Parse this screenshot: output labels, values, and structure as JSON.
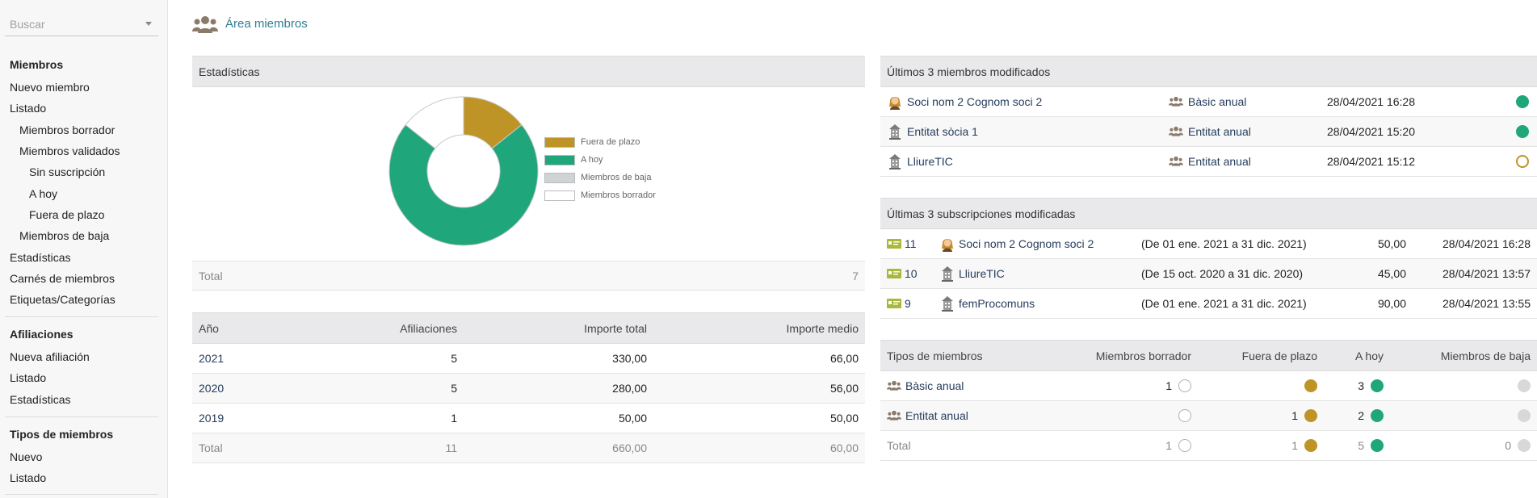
{
  "search": {
    "placeholder": "Buscar"
  },
  "sidebar": {
    "sections": [
      {
        "head": "Miembros",
        "items": [
          "Nuevo miembro",
          "Listado",
          "Miembros borrador",
          "Miembros validados",
          "Sin suscripción",
          "A hoy",
          "Fuera de plazo",
          "Miembros de baja",
          "Estadísticas",
          "Carnés de miembros",
          "Etiquetas/Categorías"
        ]
      },
      {
        "head": "Afiliaciones",
        "items": [
          "Nueva afiliación",
          "Listado",
          "Estadísticas"
        ]
      },
      {
        "head": "Tipos de miembros",
        "items": [
          "Nuevo",
          "Listado"
        ]
      }
    ]
  },
  "page": {
    "title": "Área miembros"
  },
  "stats": {
    "heading": "Estadísticas",
    "total_label": "Total",
    "total_value": "7",
    "legend": [
      "Fuera de plazo",
      "A hoy",
      "Miembros de baja",
      "Miembros borrador"
    ]
  },
  "chart_data": {
    "type": "pie",
    "title": "",
    "categories": [
      "Fuera de plazo",
      "A hoy",
      "Miembros de baja",
      "Miembros borrador"
    ],
    "values": [
      1,
      5,
      0,
      1
    ],
    "colors": [
      "#bf9426",
      "#1fa67a",
      "#d0d3d4",
      "#ffffff"
    ]
  },
  "yearly": {
    "headers": [
      "Año",
      "Afiliaciones",
      "Importe total",
      "Importe medio"
    ],
    "rows": [
      [
        "2021",
        "5",
        "330,00",
        "66,00"
      ],
      [
        "2020",
        "5",
        "280,00",
        "56,00"
      ],
      [
        "2019",
        "1",
        "50,00",
        "50,00"
      ]
    ],
    "total": [
      "Total",
      "11",
      "660,00",
      "60,00"
    ]
  },
  "last_members": {
    "heading": "Últimos 3 miembros modificados",
    "rows": [
      {
        "name": "Soci nom 2 Cognom soci 2",
        "type": "Bàsic anual",
        "date": "28/04/2021 16:28",
        "status": "green",
        "avatar": "woman-avatar-icon"
      },
      {
        "name": "Entitat sòcia 1",
        "type": "Entitat anual",
        "date": "28/04/2021 15:20",
        "status": "green",
        "avatar": "building-icon"
      },
      {
        "name": "LliureTIC",
        "type": "Entitat anual",
        "date": "28/04/2021 15:12",
        "status": "empty-gold",
        "avatar": "building-icon"
      }
    ]
  },
  "last_subs": {
    "heading": "Últimas 3 subscripciones modificadas",
    "rows": [
      {
        "ref": "11",
        "name": "Soci nom 2 Cognom soci 2",
        "period": "(De 01 ene. 2021 a 31 dic. 2021)",
        "amount": "50,00",
        "date": "28/04/2021 16:28",
        "avatar": "woman-avatar-icon"
      },
      {
        "ref": "10",
        "name": "LliureTIC",
        "period": "(De 15 oct. 2020 a 31 dic. 2020)",
        "amount": "45,00",
        "date": "28/04/2021 13:57",
        "avatar": "building-icon"
      },
      {
        "ref": "9",
        "name": "femProcomuns",
        "period": "(De 01 ene. 2021 a 31 dic. 2021)",
        "amount": "90,00",
        "date": "28/04/2021 13:55",
        "avatar": "building-icon"
      }
    ]
  },
  "member_types": {
    "headers": [
      "Tipos de miembros",
      "Miembros borrador",
      "Fuera de plazo",
      "A hoy",
      "Miembros de baja"
    ],
    "rows": [
      {
        "name": "Bàsic anual",
        "borrador": "1",
        "fuera": "",
        "hoy": "3",
        "baja": ""
      },
      {
        "name": "Entitat anual",
        "borrador": "",
        "fuera": "1",
        "hoy": "2",
        "baja": ""
      }
    ],
    "total": {
      "label": "Total",
      "borrador": "1",
      "fuera": "1",
      "hoy": "5",
      "baja": "0"
    }
  }
}
